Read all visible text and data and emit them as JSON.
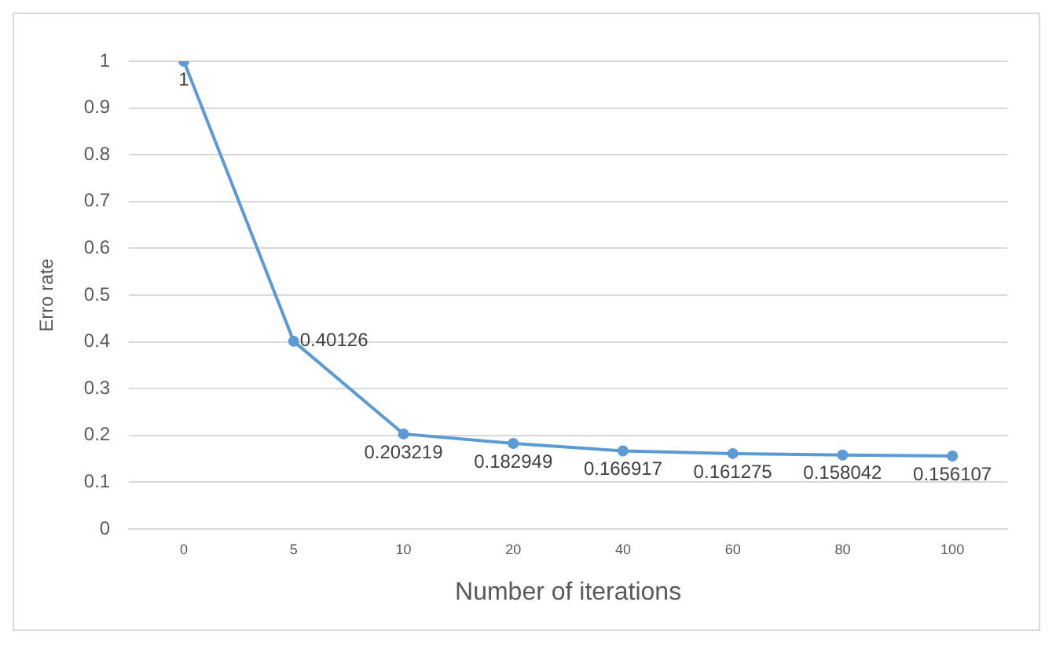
{
  "chart_data": {
    "type": "line",
    "xlabel": "Number of iterations",
    "ylabel": "Erro rate",
    "categories": [
      "0",
      "5",
      "10",
      "20",
      "40",
      "60",
      "80",
      "100"
    ],
    "series": [
      {
        "color": "#5b9bd5",
        "values": [
          1,
          0.40126,
          0.203219,
          0.182949,
          0.166917,
          0.161275,
          0.158042,
          0.156107
        ]
      }
    ],
    "ylim": [
      0,
      1
    ],
    "yticks": [
      0,
      0.1,
      0.2,
      0.3,
      0.4,
      0.5,
      0.6,
      0.7,
      0.8,
      0.9,
      1
    ],
    "grid": "y",
    "legend": false,
    "marker": "circle",
    "line_style": "solid",
    "data_labels": true
  }
}
